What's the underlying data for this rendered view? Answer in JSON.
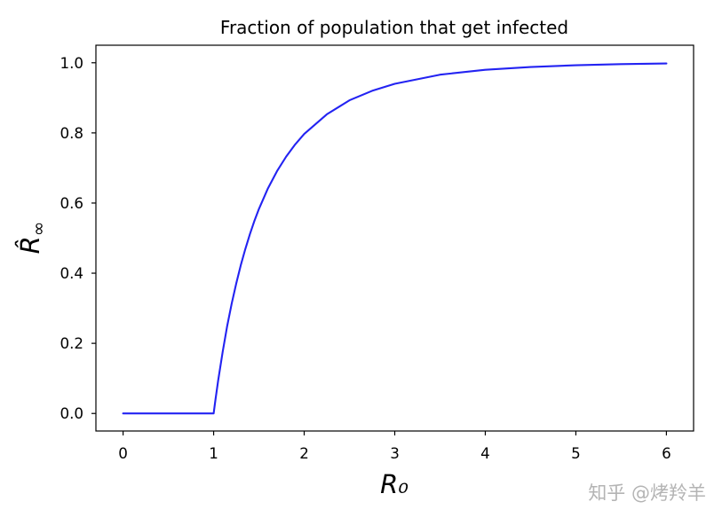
{
  "chart_data": {
    "type": "line",
    "title": "Fraction of population that get infected",
    "xlabel": "R₀",
    "ylabel": "R̂∞",
    "xlim": [
      -0.3,
      6.3
    ],
    "ylim": [
      -0.05,
      1.05
    ],
    "xticks": [
      0,
      1,
      2,
      3,
      4,
      5,
      6
    ],
    "xtick_labels": [
      "0",
      "1",
      "2",
      "3",
      "4",
      "5",
      "6"
    ],
    "yticks": [
      0,
      0.2,
      0.4,
      0.6,
      0.8,
      1.0
    ],
    "ytick_labels": [
      "0.0",
      "0.2",
      "0.4",
      "0.6",
      "0.8",
      "1.0"
    ],
    "grid": false,
    "series": [
      {
        "color": "#2323f2",
        "x": [
          0,
          0.5,
          1.0,
          1.02,
          1.05,
          1.1,
          1.15,
          1.2,
          1.25,
          1.3,
          1.35,
          1.4,
          1.45,
          1.5,
          1.6,
          1.7,
          1.8,
          1.9,
          2.0,
          2.25,
          2.5,
          2.75,
          3.0,
          3.5,
          4.0,
          4.5,
          5.0,
          5.5,
          6.0
        ],
        "y": [
          0,
          0,
          0,
          0.039,
          0.094,
          0.176,
          0.25,
          0.314,
          0.371,
          0.423,
          0.469,
          0.511,
          0.549,
          0.583,
          0.642,
          0.691,
          0.732,
          0.767,
          0.797,
          0.853,
          0.893,
          0.92,
          0.94,
          0.966,
          0.98,
          0.988,
          0.993,
          0.996,
          0.998
        ]
      }
    ]
  },
  "watermark": "知乎 @烤羚羊"
}
